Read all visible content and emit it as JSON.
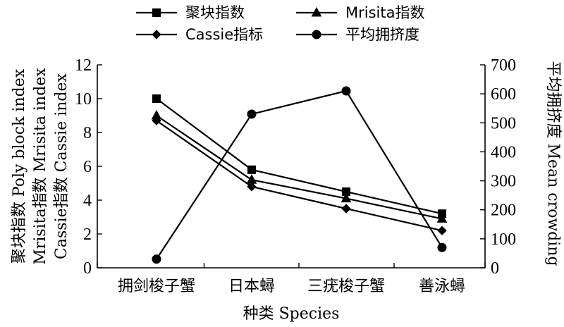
{
  "chart_data": {
    "type": "line",
    "categories": [
      "拥剑梭子蟹",
      "日本蟳",
      "三疣梭子蟹",
      "善泳蟳"
    ],
    "xlabel": "种类 Species",
    "ylabel_left": [
      "聚块指数 Poly block index",
      "Mrisita指数 Mrisita index",
      "Cassie指数 Cassie index"
    ],
    "ylabel_right": "平均拥挤度 Mean crowding",
    "ylim_left": [
      0,
      12
    ],
    "yticks_left": [
      0,
      2,
      4,
      6,
      8,
      10,
      12
    ],
    "ylim_right": [
      0,
      700
    ],
    "yticks_right": [
      0,
      100,
      200,
      300,
      400,
      500,
      600,
      700
    ],
    "grid": false,
    "legend_position": "top",
    "series": [
      {
        "name": "聚块指数",
        "marker": "square",
        "axis": "left",
        "values": [
          10.0,
          5.8,
          4.5,
          3.2
        ]
      },
      {
        "name": "Mrisita指数",
        "marker": "triangle",
        "axis": "left",
        "values": [
          9.0,
          5.2,
          4.1,
          2.9
        ]
      },
      {
        "name": "Cassie指标",
        "marker": "diamond",
        "axis": "left",
        "values": [
          8.7,
          4.8,
          3.5,
          2.2
        ]
      },
      {
        "name": "平均拥挤度",
        "marker": "circle",
        "axis": "right",
        "values": [
          30,
          530,
          610,
          70
        ]
      }
    ],
    "colors": {
      "line": "#000000",
      "marker": "#000000"
    }
  }
}
